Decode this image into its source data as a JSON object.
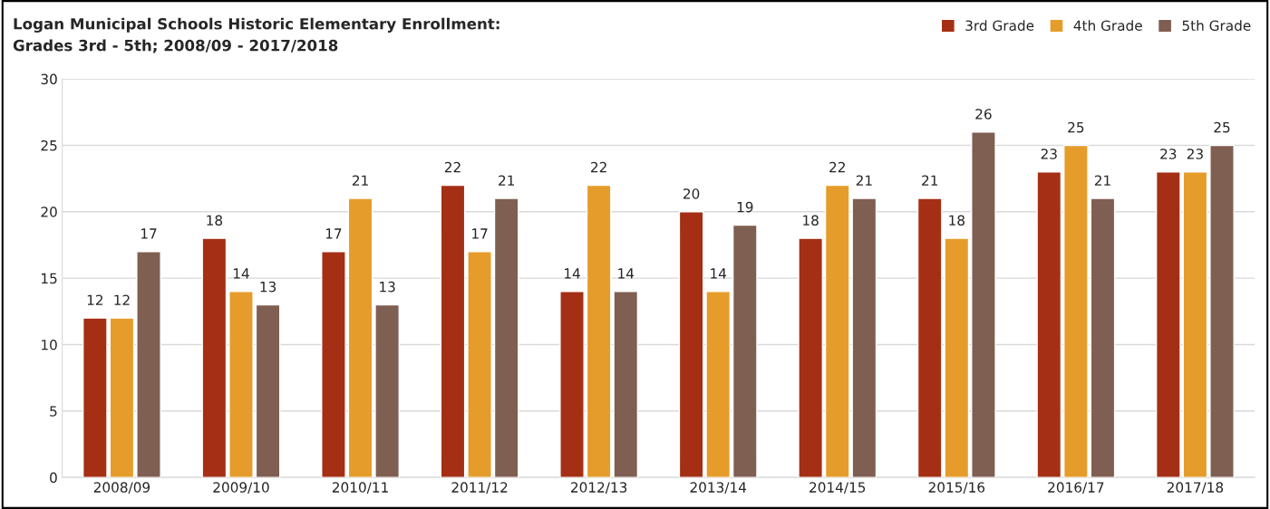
{
  "chart_data": {
    "type": "bar",
    "title": "Logan Municipal Schools Historic Elementary Enrollment:\nGrades 3rd - 5th; 2008/09 - 2017/2018",
    "categories": [
      "2008/09",
      "2009/10",
      "2010/11",
      "2011/12",
      "2012/13",
      "2013/14",
      "2014/15",
      "2015/16",
      "2016/17",
      "2017/18"
    ],
    "series": [
      {
        "name": "3rd Grade",
        "color": "#a52f14",
        "values": [
          12,
          18,
          17,
          22,
          14,
          20,
          18,
          21,
          23,
          23
        ]
      },
      {
        "name": "4th Grade",
        "color": "#e69c2a",
        "values": [
          12,
          14,
          21,
          17,
          22,
          14,
          22,
          18,
          25,
          23
        ]
      },
      {
        "name": "5th Grade",
        "color": "#7f5f52",
        "values": [
          17,
          13,
          13,
          21,
          14,
          19,
          21,
          26,
          21,
          25
        ]
      }
    ],
    "ylim": [
      0,
      30
    ],
    "yticks": [
      0,
      5,
      10,
      15,
      20,
      25,
      30
    ],
    "grid": "y",
    "legend": "top right",
    "data_labels": true
  }
}
